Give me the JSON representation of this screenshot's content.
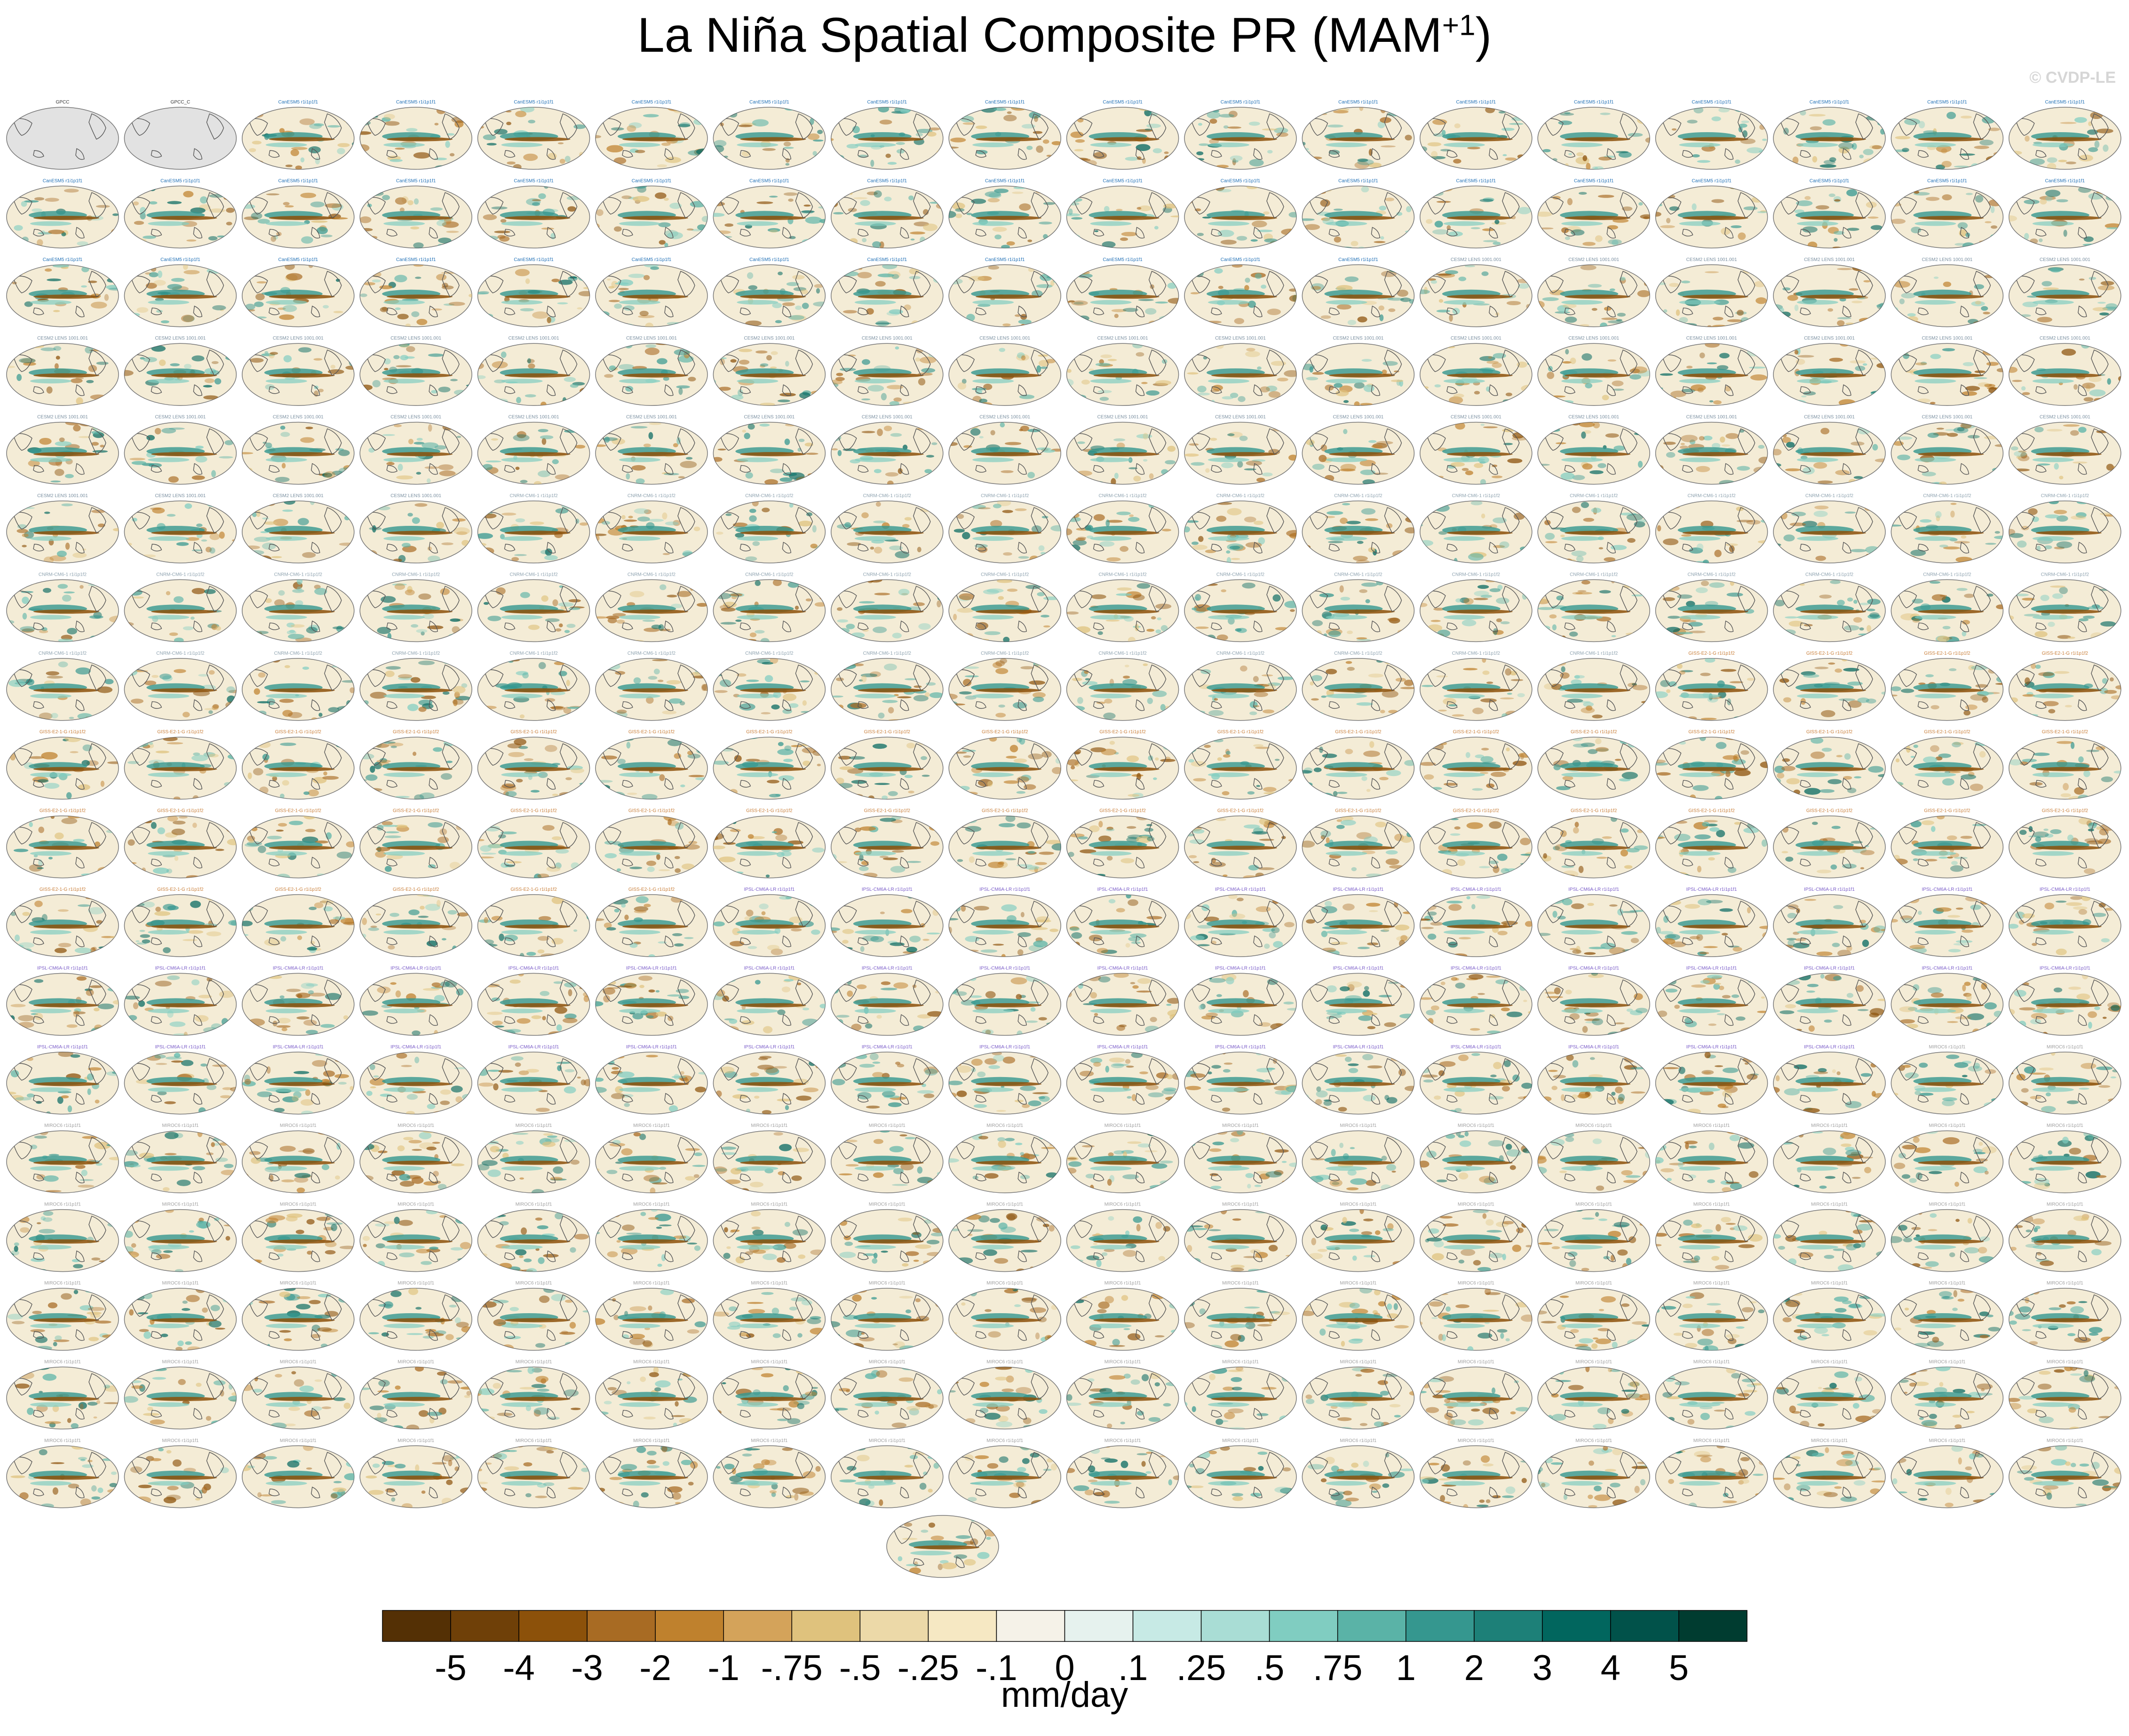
{
  "title_main": "La Niña Spatial Composite PR (MAM",
  "title_sup": "+1",
  "title_close": ")",
  "watermark": "© CVDP-LE",
  "chart_data": {
    "type": "heatmap",
    "description_type": "small-multiples map grid",
    "grid_rows": 18,
    "grid_cols": 18,
    "extra_panel": 1,
    "units": "mm/day",
    "colorbar_labels": [
      "-5",
      "-4",
      "-3",
      "-2",
      "-1",
      "-.75",
      "-.5",
      "-.25",
      "-.1",
      "0",
      ".1",
      ".25",
      ".5",
      ".75",
      "1",
      "2",
      "3",
      "4",
      "5"
    ],
    "colorbar_colors": [
      "#543005",
      "#6f4008",
      "#8c510a",
      "#a86b23",
      "#bf812d",
      "#d4a35a",
      "#dfc27d",
      "#ecd9a8",
      "#f6e8c3",
      "#f5f2e8",
      "#e6f2ee",
      "#c7eae5",
      "#a9ddd5",
      "#80cdc1",
      "#5ab3a7",
      "#35978f",
      "#1d8078",
      "#01665e",
      "#01524a",
      "#003c30"
    ],
    "panel_titles": [
      "GPCC",
      "GPCC_C",
      "CanESM5 r1i1p1f1",
      "CESM2 LENS 1001.001",
      "CNRM-CM6-1 r1i1p1f2",
      "GISS-E2-1-G r1i1p1f2",
      "IPSL-CM6A-LR r1i1p1f1",
      "MIROC6 r1i1p1f1"
    ]
  }
}
